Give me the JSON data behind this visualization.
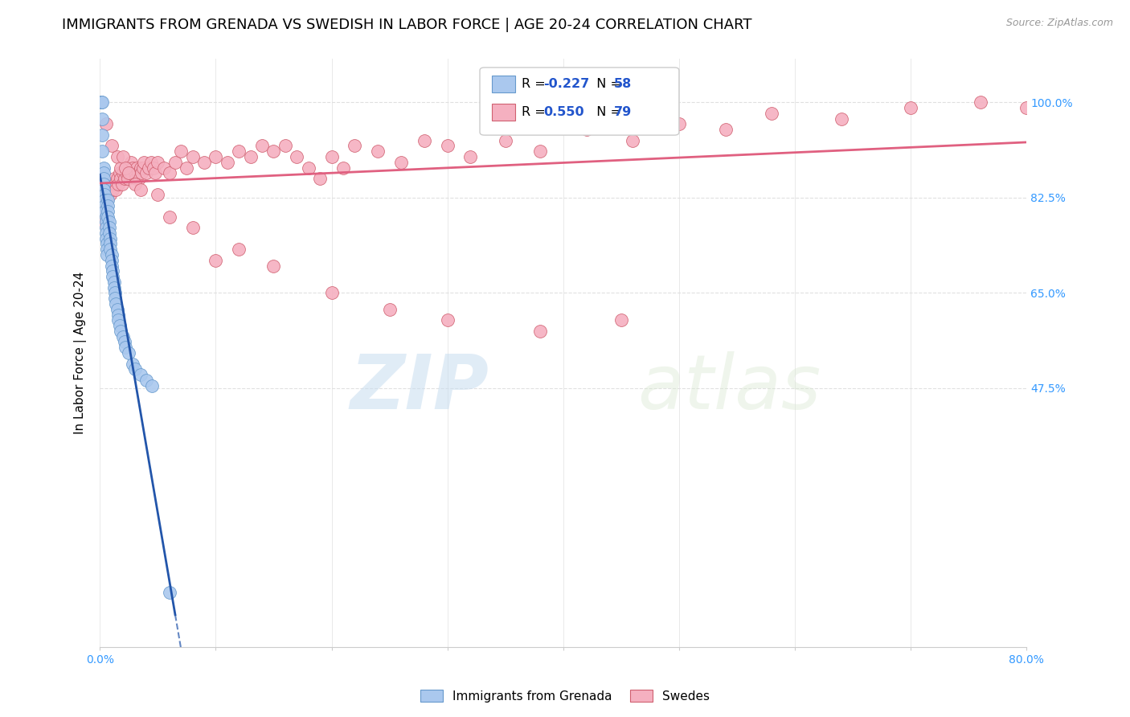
{
  "title": "IMMIGRANTS FROM GRENADA VS SWEDISH IN LABOR FORCE | AGE 20-24 CORRELATION CHART",
  "source": "Source: ZipAtlas.com",
  "ylabel": "In Labor Force | Age 20-24",
  "xlim": [
    0.0,
    0.8
  ],
  "ylim": [
    0.0,
    1.08
  ],
  "ytick_values": [
    0.475,
    0.65,
    0.825,
    1.0
  ],
  "ytick_labels": [
    "47.5%",
    "65.0%",
    "82.5%",
    "100.0%"
  ],
  "grenada_R": -0.227,
  "grenada_N": 58,
  "swedes_R": 0.55,
  "swedes_N": 79,
  "grenada_color": "#aac8ee",
  "swedes_color": "#f5b0c0",
  "grenada_edge_color": "#6699cc",
  "swedes_edge_color": "#d06070",
  "grenada_line_color": "#2255aa",
  "swedes_line_color": "#e06080",
  "background_color": "#ffffff",
  "grid_color": "#e0e0e0",
  "tick_color": "#3399ff",
  "title_fontsize": 13,
  "axis_label_fontsize": 11,
  "tick_fontsize": 10,
  "grenada_x": [
    0.001,
    0.001,
    0.002,
    0.002,
    0.002,
    0.002,
    0.003,
    0.003,
    0.003,
    0.003,
    0.003,
    0.004,
    0.004,
    0.004,
    0.004,
    0.005,
    0.005,
    0.005,
    0.005,
    0.005,
    0.006,
    0.006,
    0.006,
    0.007,
    0.007,
    0.007,
    0.007,
    0.008,
    0.008,
    0.008,
    0.009,
    0.009,
    0.009,
    0.01,
    0.01,
    0.01,
    0.011,
    0.011,
    0.012,
    0.012,
    0.013,
    0.013,
    0.014,
    0.015,
    0.016,
    0.016,
    0.017,
    0.018,
    0.02,
    0.021,
    0.022,
    0.025,
    0.028,
    0.03,
    0.035,
    0.04,
    0.045,
    0.06
  ],
  "grenada_y": [
    1.0,
    1.0,
    1.0,
    0.97,
    0.94,
    0.91,
    0.88,
    0.87,
    0.86,
    0.85,
    0.84,
    0.83,
    0.82,
    0.81,
    0.8,
    0.79,
    0.78,
    0.77,
    0.76,
    0.75,
    0.74,
    0.73,
    0.72,
    0.82,
    0.81,
    0.8,
    0.79,
    0.78,
    0.77,
    0.76,
    0.75,
    0.74,
    0.73,
    0.72,
    0.71,
    0.7,
    0.69,
    0.68,
    0.67,
    0.66,
    0.65,
    0.64,
    0.63,
    0.62,
    0.61,
    0.6,
    0.59,
    0.58,
    0.57,
    0.56,
    0.55,
    0.54,
    0.52,
    0.51,
    0.5,
    0.49,
    0.48,
    0.1
  ],
  "swedes_x": [
    0.001,
    0.002,
    0.003,
    0.004,
    0.005,
    0.006,
    0.007,
    0.008,
    0.009,
    0.01,
    0.011,
    0.012,
    0.013,
    0.014,
    0.015,
    0.016,
    0.017,
    0.018,
    0.019,
    0.02,
    0.021,
    0.022,
    0.023,
    0.024,
    0.025,
    0.026,
    0.027,
    0.028,
    0.03,
    0.031,
    0.032,
    0.033,
    0.034,
    0.035,
    0.036,
    0.037,
    0.038,
    0.04,
    0.042,
    0.044,
    0.046,
    0.048,
    0.05,
    0.055,
    0.06,
    0.065,
    0.07,
    0.075,
    0.08,
    0.09,
    0.1,
    0.11,
    0.12,
    0.13,
    0.14,
    0.15,
    0.16,
    0.17,
    0.18,
    0.19,
    0.2,
    0.21,
    0.22,
    0.24,
    0.26,
    0.28,
    0.3,
    0.32,
    0.35,
    0.38,
    0.42,
    0.46,
    0.5,
    0.54,
    0.58,
    0.64,
    0.7,
    0.76,
    0.8
  ],
  "swedes_y": [
    0.78,
    0.82,
    0.8,
    0.83,
    0.84,
    0.82,
    0.85,
    0.84,
    0.83,
    0.85,
    0.84,
    0.86,
    0.85,
    0.84,
    0.86,
    0.85,
    0.87,
    0.86,
    0.85,
    0.87,
    0.86,
    0.88,
    0.87,
    0.86,
    0.88,
    0.87,
    0.89,
    0.88,
    0.87,
    0.86,
    0.88,
    0.87,
    0.86,
    0.88,
    0.87,
    0.88,
    0.89,
    0.87,
    0.88,
    0.89,
    0.88,
    0.87,
    0.89,
    0.88,
    0.87,
    0.89,
    0.91,
    0.88,
    0.9,
    0.89,
    0.9,
    0.89,
    0.91,
    0.9,
    0.92,
    0.91,
    0.92,
    0.9,
    0.88,
    0.86,
    0.9,
    0.88,
    0.92,
    0.91,
    0.89,
    0.93,
    0.92,
    0.9,
    0.93,
    0.91,
    0.95,
    0.93,
    0.96,
    0.95,
    0.98,
    0.97,
    0.99,
    1.0,
    0.99
  ],
  "swedes_x_extra": [
    0.005,
    0.01,
    0.015,
    0.018,
    0.02,
    0.022,
    0.025,
    0.03,
    0.035,
    0.05,
    0.06,
    0.08,
    0.1,
    0.12,
    0.15,
    0.2,
    0.25,
    0.3,
    0.38,
    0.45
  ],
  "swedes_y_extra": [
    0.96,
    0.92,
    0.9,
    0.88,
    0.9,
    0.88,
    0.87,
    0.85,
    0.84,
    0.83,
    0.79,
    0.77,
    0.71,
    0.73,
    0.7,
    0.65,
    0.62,
    0.6,
    0.58,
    0.6
  ],
  "watermark_zip": "ZIP",
  "watermark_atlas": "atlas"
}
